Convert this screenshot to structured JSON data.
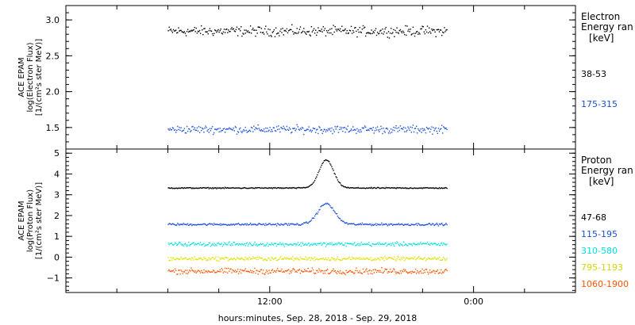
{
  "chart_data": [
    {
      "type": "scatter",
      "ylabel_lines": [
        "ACE EPAM",
        "log(Electron Flux)",
        "[1/(cm²s ster MeV)]"
      ],
      "ylim": [
        1.2,
        3.2
      ],
      "yticks": [
        1.5,
        2.0,
        2.5,
        3.0
      ],
      "ytick_labels": [
        "1.5",
        "2.0",
        "2.5",
        "3.0"
      ],
      "legend_title_lines": [
        "Electron",
        "Energy ran"
      ],
      "legend_unit": "[keV]",
      "series": [
        {
          "name": "38-53",
          "color": "#000000",
          "x_start": 6.0,
          "x_end": 22.4,
          "y_mean": 2.85,
          "y_noise": 0.05
        },
        {
          "name": "175-315",
          "color": "#1a4fd6",
          "x_start": 6.0,
          "x_end": 22.4,
          "y_mean": 1.48,
          "y_noise": 0.04
        }
      ]
    },
    {
      "type": "scatter",
      "ylabel_lines": [
        "ACE EPAM",
        "log(Proton Flux)",
        "[1/(cm²s ster MeV)]"
      ],
      "ylim": [
        -1.7,
        5.2
      ],
      "yticks": [
        -1,
        0,
        1,
        2,
        3,
        4,
        5
      ],
      "ytick_labels": [
        "−1",
        "0",
        "1",
        "2",
        "3",
        "4",
        "5"
      ],
      "legend_title_lines": [
        "Proton",
        "Energy ran"
      ],
      "legend_unit": "[keV]",
      "series": [
        {
          "name": "47-68",
          "color": "#000000",
          "x_start": 6.0,
          "x_end": 22.4,
          "y_mean": 3.35,
          "y_noise": 0.02,
          "peak_center": 15.3,
          "peak_width": 0.6,
          "peak_height": 1.35
        },
        {
          "name": "115-195",
          "color": "#1a4fd6",
          "x_start": 6.0,
          "x_end": 22.4,
          "y_mean": 1.6,
          "y_noise": 0.04,
          "peak_center": 15.3,
          "peak_width": 0.7,
          "peak_height": 1.0
        },
        {
          "name": "310-580",
          "color": "#00e0e0",
          "x_start": 6.0,
          "x_end": 22.4,
          "y_mean": 0.65,
          "y_noise": 0.07
        },
        {
          "name": "795-1193",
          "color": "#e0e000",
          "x_start": 6.0,
          "x_end": 22.4,
          "y_mean": -0.05,
          "y_noise": 0.07
        },
        {
          "name": "1060-1900",
          "color": "#ff5500",
          "x_start": 6.0,
          "x_end": 22.4,
          "y_mean": -0.65,
          "y_noise": 0.1
        }
      ]
    }
  ],
  "x_axis": {
    "xlim": [
      0,
      30
    ],
    "xticks": [
      12,
      24
    ],
    "xtick_labels": [
      "12:00",
      "0:00"
    ],
    "minor_ticks": [
      3,
      6,
      9,
      15,
      18,
      21,
      27
    ],
    "label": "hours:minutes, Sep. 28, 2018 - Sep. 29, 2018"
  }
}
